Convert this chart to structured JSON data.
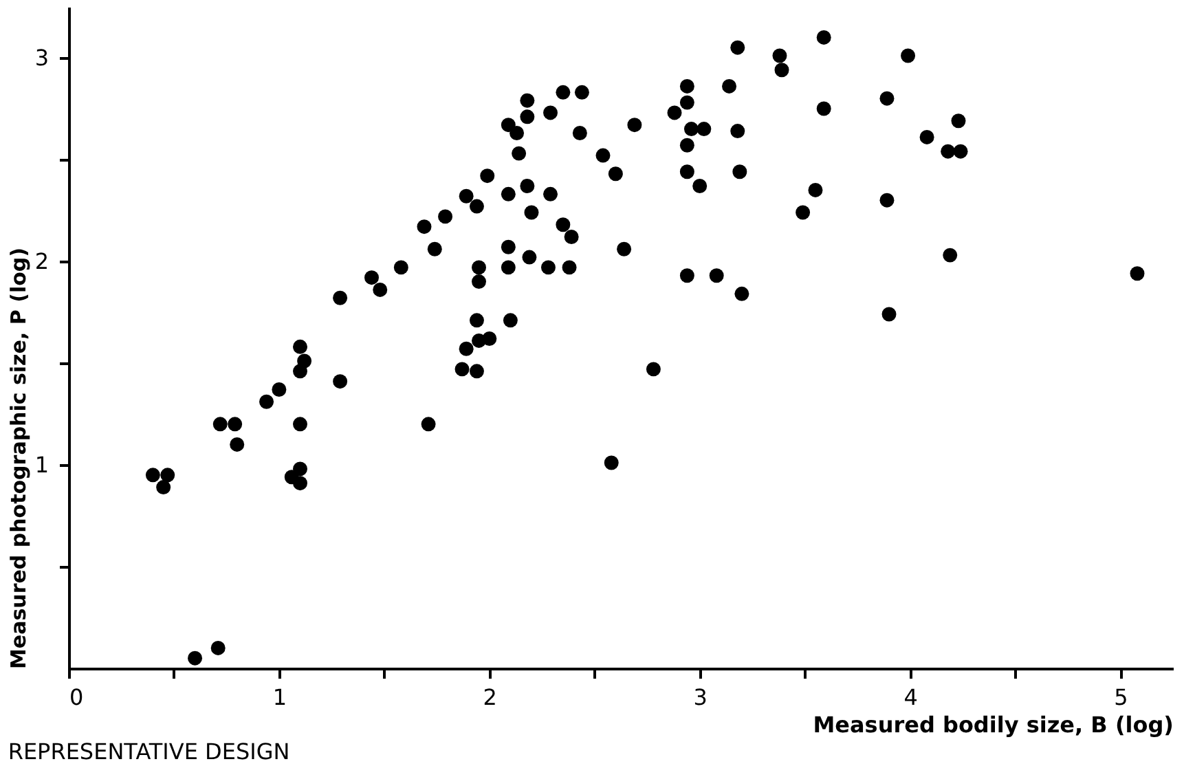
{
  "chart_data": {
    "type": "scatter",
    "title": "REPRESENTATIVE DESIGN",
    "xlabel": "Measured bodily size, B (log)",
    "ylabel": "Measured photographic size, P (log)",
    "xlim": [
      0,
      5.25
    ],
    "ylim": [
      0,
      3.25
    ],
    "xticks": [
      0,
      {
        "value": 0.5,
        "label": null
      },
      1,
      {
        "value": 1.5,
        "label": null
      },
      2,
      {
        "value": 2.5,
        "label": null
      },
      3,
      {
        "value": 3.5,
        "label": null
      },
      4,
      {
        "value": 4.5,
        "label": null
      },
      5
    ],
    "yticks": [
      {
        "value": 0.5,
        "label": null
      },
      1,
      {
        "value": 1.5,
        "label": null
      },
      2,
      {
        "value": 2.5,
        "label": null
      },
      3
    ],
    "grid": false,
    "marker": "circle",
    "series": [
      {
        "color": "#000000",
        "x": [
          0.4,
          0.47,
          0.45,
          0.6,
          0.71,
          0.72,
          0.79,
          0.8,
          0.94,
          1.0,
          1.1,
          1.06,
          1.1,
          1.1,
          1.29,
          1.71,
          2.58,
          1.1,
          1.12,
          1.1,
          1.29,
          1.44,
          1.48,
          1.58,
          1.69,
          1.74,
          1.79,
          1.89,
          1.94,
          1.99,
          2.09,
          2.13,
          2.14,
          2.18,
          2.18,
          2.29,
          2.35,
          2.44,
          2.43,
          2.54,
          2.6,
          2.69,
          2.09,
          2.18,
          2.29,
          2.2,
          2.35,
          2.39,
          2.09,
          2.19,
          2.09,
          2.28,
          2.38,
          1.95,
          1.95,
          1.94,
          2.1,
          1.89,
          1.95,
          2.0,
          1.87,
          1.94,
          2.64,
          2.78,
          2.94,
          2.94,
          2.88,
          2.96,
          3.02,
          2.94,
          2.94,
          3.0,
          2.94,
          3.08,
          3.2,
          3.18,
          3.14,
          3.18,
          3.19,
          3.38,
          3.39,
          3.59,
          3.59,
          3.55,
          3.49,
          3.99,
          3.89,
          3.89,
          3.9,
          4.08,
          4.23,
          4.18,
          4.24,
          4.19,
          5.08
        ],
        "values": [
          0.95,
          0.95,
          0.89,
          0.05,
          0.1,
          1.2,
          1.2,
          1.1,
          1.31,
          1.37,
          1.2,
          0.94,
          0.98,
          0.91,
          1.41,
          1.2,
          1.01,
          1.58,
          1.51,
          1.46,
          1.82,
          1.92,
          1.86,
          1.97,
          2.17,
          2.06,
          2.22,
          2.32,
          2.27,
          2.42,
          2.67,
          2.63,
          2.53,
          2.79,
          2.71,
          2.73,
          2.83,
          2.83,
          2.63,
          2.52,
          2.43,
          2.67,
          2.33,
          2.37,
          2.33,
          2.24,
          2.18,
          2.12,
          2.07,
          2.02,
          1.97,
          1.97,
          1.97,
          1.97,
          1.9,
          1.71,
          1.71,
          1.57,
          1.61,
          1.62,
          1.47,
          1.46,
          2.06,
          1.47,
          2.86,
          2.78,
          2.73,
          2.65,
          2.65,
          2.57,
          2.44,
          2.37,
          1.93,
          1.93,
          1.84,
          3.05,
          2.86,
          2.64,
          2.44,
          3.01,
          2.94,
          3.1,
          2.75,
          2.35,
          2.24,
          3.01,
          2.8,
          2.3,
          1.74,
          2.61,
          2.69,
          2.54,
          2.54,
          2.03,
          1.94
        ]
      }
    ]
  }
}
